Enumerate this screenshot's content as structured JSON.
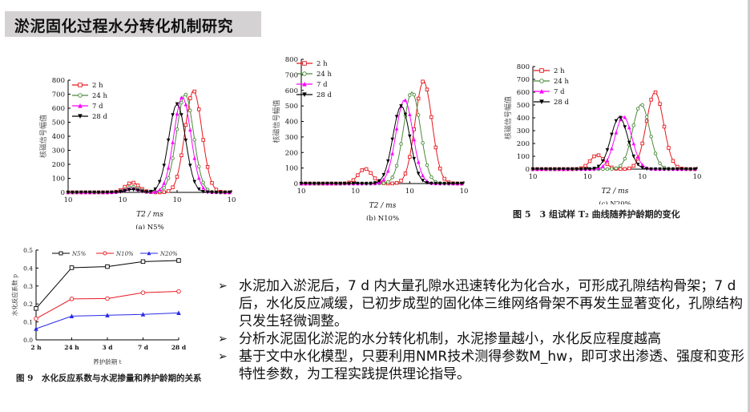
{
  "slide": {
    "title": "淤泥固化过程水分转化机制研究",
    "fig5_caption": "图 5　3 组试样 T₂ 曲线随养护龄期的变化",
    "fig9_caption": "图 9　水化反应系数与水泥掺量和养护龄期的关系",
    "bullets": [
      "水泥加入淤泥后，7 d 内大量孔隙水迅速转化为化合水，可形成孔隙结构骨架；7 d 后，水化反应减缓，已初步成型的固化体三维网络骨架不再发生显著变化，孔隙结构只发生轻微调整。",
      "分析水泥固化淤泥的水分转化机制，水泥掺量越小，水化反应程度越高",
      "基于文中水化模型，只要利用NMR技术测得参数M_hw，即可求出渗透、强度和变形特性参数，为工程实践提供理论指导。"
    ],
    "bullet_icon": "arrow-right-icon"
  },
  "chart_data": [
    {
      "type": "line",
      "title": "(a) N5%",
      "xlabel": "T2 / ms",
      "ylabel": "核磁信号幅值",
      "xscale": "log",
      "xlim": [
        0.01,
        10
      ],
      "ylim": [
        0,
        800
      ],
      "yticks": [
        0,
        100,
        200,
        300,
        400,
        500,
        600,
        700,
        800
      ],
      "xticks": [
        "10^-2",
        "10^-1",
        "10^0",
        "10^1"
      ],
      "legend": [
        "2 h",
        "24 h",
        "7 d",
        "28 d"
      ],
      "series": [
        {
          "name": "2 h",
          "color": "#e8171d",
          "marker": "square",
          "peaks": [
            {
              "x": 0.15,
              "y": 70
            },
            {
              "x": 2.0,
              "y": 725
            }
          ]
        },
        {
          "name": "24 h",
          "color": "#4b8b3b",
          "marker": "circle",
          "peaks": [
            {
              "x": 0.15,
              "y": 40
            },
            {
              "x": 1.4,
              "y": 700
            }
          ]
        },
        {
          "name": "7 d",
          "color": "#ff00ff",
          "marker": "triangle-up",
          "peaks": [
            {
              "x": 0.15,
              "y": 30
            },
            {
              "x": 1.25,
              "y": 680
            }
          ]
        },
        {
          "name": "28 d",
          "color": "#000000",
          "marker": "triangle-down",
          "peaks": [
            {
              "x": 0.15,
              "y": 20
            },
            {
              "x": 1.0,
              "y": 630
            }
          ]
        }
      ]
    },
    {
      "type": "line",
      "title": "(b) N10%",
      "xlabel": "T2 / ms",
      "ylabel": "核磁信号幅值",
      "xscale": "log",
      "xlim": [
        0.01,
        10
      ],
      "ylim": [
        0,
        800
      ],
      "yticks": [
        0,
        100,
        200,
        300,
        400,
        500,
        600,
        700,
        800
      ],
      "xticks": [
        "10^-2",
        "10^-1",
        "10^0",
        "10^1"
      ],
      "legend": [
        "2 h",
        "24 h",
        "7 d",
        "28 d"
      ],
      "series": [
        {
          "name": "2 h",
          "color": "#e8171d",
          "marker": "square",
          "peaks": [
            {
              "x": 0.15,
              "y": 95
            },
            {
              "x": 1.8,
              "y": 660
            }
          ]
        },
        {
          "name": "24 h",
          "color": "#4b8b3b",
          "marker": "circle",
          "peaks": [
            {
              "x": 1.1,
              "y": 590
            }
          ]
        },
        {
          "name": "7 d",
          "color": "#ff00ff",
          "marker": "triangle-up",
          "peaks": [
            {
              "x": 0.8,
              "y": 540
            }
          ]
        },
        {
          "name": "28 d",
          "color": "#000000",
          "marker": "triangle-down",
          "peaks": [
            {
              "x": 0.7,
              "y": 500
            }
          ]
        }
      ]
    },
    {
      "type": "line",
      "title": "(c) N20%",
      "xlabel": "T2 / ms",
      "ylabel": "核磁信号幅值",
      "xscale": "log",
      "xlim": [
        0.01,
        10
      ],
      "ylim": [
        0,
        800
      ],
      "yticks": [
        0,
        100,
        200,
        300,
        400,
        500,
        600,
        700,
        800
      ],
      "xticks": [
        "10^-2",
        "10^-1",
        "10^0",
        "10^1"
      ],
      "legend": [
        "2 h",
        "24 h",
        "7 d",
        "28 d"
      ],
      "series": [
        {
          "name": "2 h",
          "color": "#e8171d",
          "marker": "square",
          "peaks": [
            {
              "x": 0.15,
              "y": 110
            },
            {
              "x": 1.7,
              "y": 600
            }
          ]
        },
        {
          "name": "24 h",
          "color": "#4b8b3b",
          "marker": "circle",
          "peaks": [
            {
              "x": 0.95,
              "y": 505
            }
          ]
        },
        {
          "name": "7 d",
          "color": "#ff00ff",
          "marker": "triangle-up",
          "peaks": [
            {
              "x": 0.45,
              "y": 410
            }
          ]
        },
        {
          "name": "28 d",
          "color": "#000000",
          "marker": "triangle-down",
          "peaks": [
            {
              "x": 0.38,
              "y": 405
            }
          ]
        }
      ]
    },
    {
      "type": "line",
      "title": "",
      "xlabel": "养护龄期 t",
      "ylabel": "水化反应系数 p",
      "ylim": [
        0,
        0.5
      ],
      "yticks": [
        "0.0",
        "0.1",
        "0.2",
        "0.3",
        "0.4",
        "0.5"
      ],
      "categories": [
        "2 h",
        "24 h",
        "3 d",
        "7 d",
        "28 d"
      ],
      "series": [
        {
          "name": "N5%",
          "color": "#000000",
          "marker": "square",
          "values": [
            0.175,
            0.402,
            0.408,
            0.436,
            0.442
          ]
        },
        {
          "name": "N10%",
          "color": "#e8171d",
          "marker": "circle",
          "values": [
            0.118,
            0.228,
            0.23,
            0.263,
            0.27
          ]
        },
        {
          "name": "N20%",
          "color": "#2a2ae8",
          "marker": "triangle-up",
          "values": [
            0.062,
            0.132,
            0.137,
            0.142,
            0.15
          ]
        }
      ]
    }
  ]
}
